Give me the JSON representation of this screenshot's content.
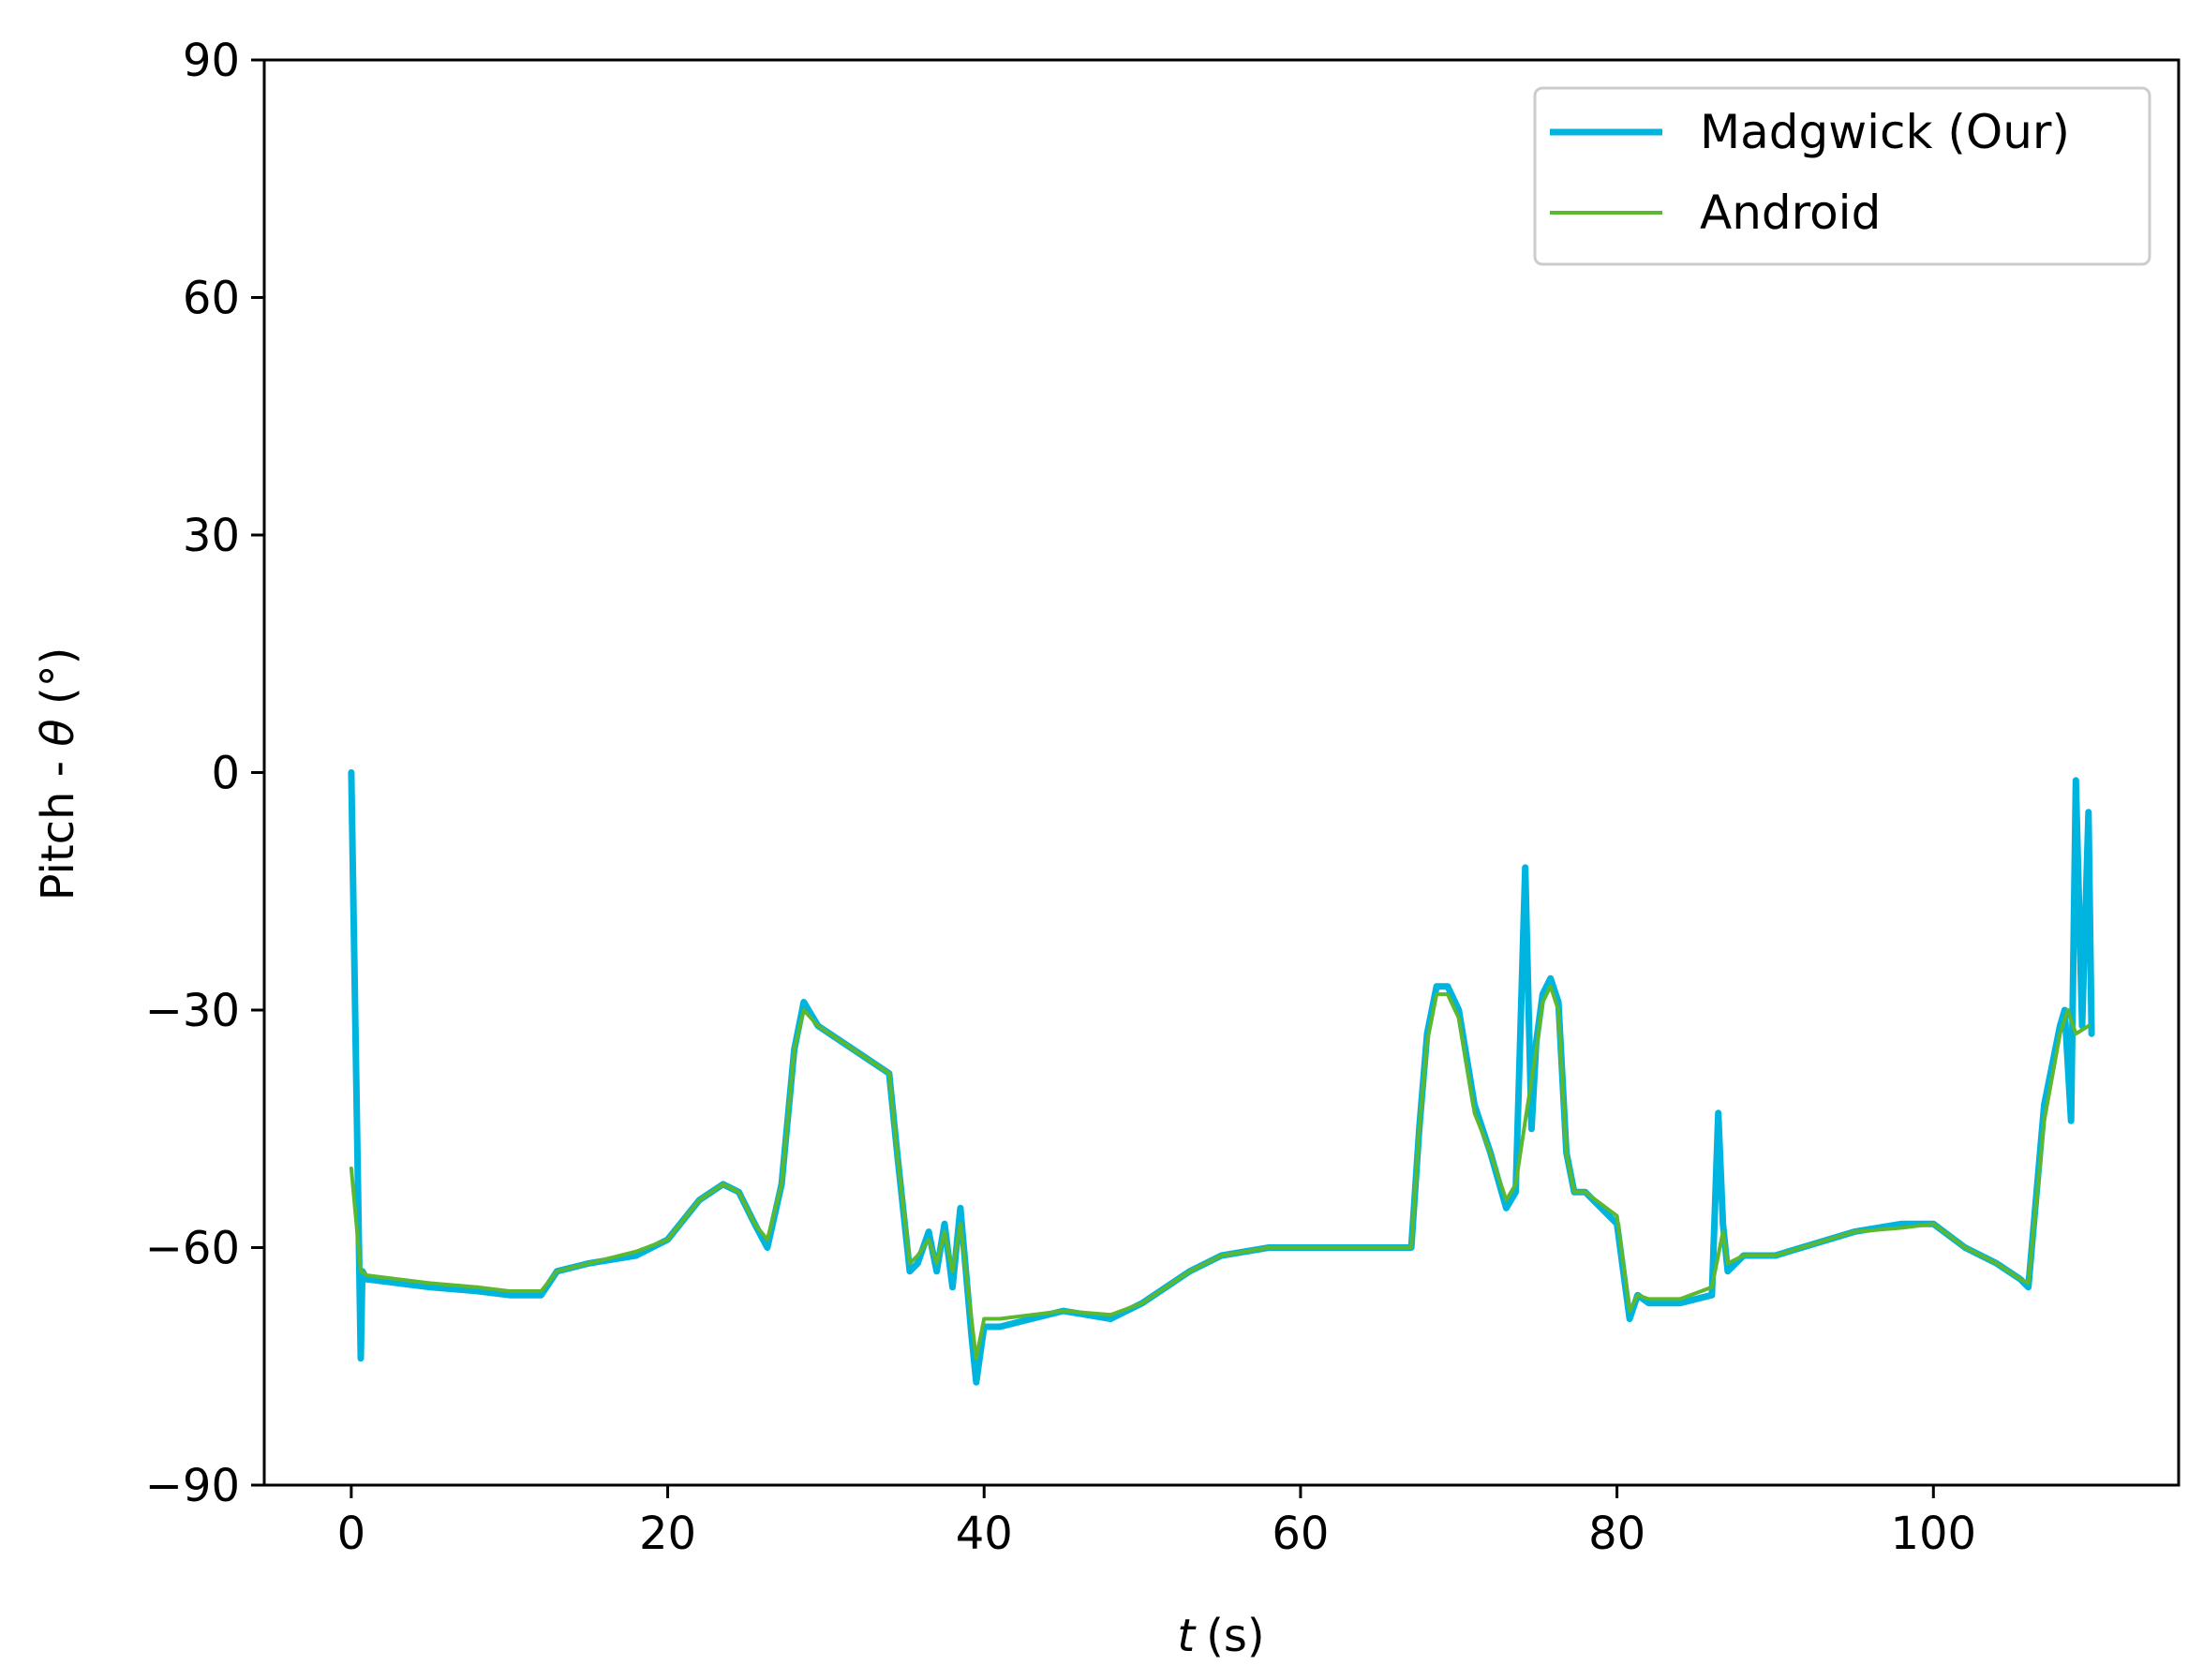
{
  "chart_data": {
    "type": "line",
    "title": "",
    "xlabel_var": "t",
    "xlabel_unit": "(s)",
    "ylabel_text": "Pitch - ",
    "ylabel_var": "θ",
    "ylabel_unit": " (°)",
    "xlim": [
      -5.5,
      115.5
    ],
    "ylim": [
      -90,
      90
    ],
    "xticks": [
      0,
      20,
      40,
      60,
      80,
      100
    ],
    "yticks": [
      90,
      60,
      30,
      0,
      -30,
      -60,
      -90
    ],
    "xtick_labels": [
      "0",
      "20",
      "40",
      "60",
      "80",
      "100"
    ],
    "ytick_labels": [
      "90",
      "60",
      "30",
      "0",
      "−30",
      "−60",
      "−90"
    ],
    "grid": false,
    "legend_position": "top-right",
    "series": [
      {
        "name": "Madgwick (Our)",
        "color": "#00b4e0",
        "x": [
          0,
          0.6,
          0.7,
          1,
          3,
          5,
          8,
          10,
          12,
          13,
          15,
          18,
          20,
          22,
          23.5,
          24.5,
          25.5,
          26.3,
          27.2,
          28,
          28.6,
          29.5,
          31,
          32.5,
          34,
          34.5,
          35.3,
          35.8,
          36.5,
          37,
          37.5,
          38,
          38.5,
          39.2,
          39.5,
          40,
          41,
          43,
          45,
          48,
          50,
          53,
          55,
          58,
          60,
          63,
          65,
          67,
          67.5,
          68,
          68.6,
          69.3,
          70,
          71,
          72,
          73,
          73.6,
          74.2,
          74.6,
          74.9,
          75.3,
          75.8,
          76.3,
          76.8,
          77.3,
          78,
          80,
          80.8,
          81.3,
          82,
          84,
          86,
          86.4,
          86.7,
          87,
          88,
          90,
          95,
          98,
          100,
          102,
          104,
          105.5,
          106,
          107,
          108,
          108.3,
          108.7,
          109,
          109.4,
          109.8,
          110
        ],
        "y": [
          0,
          -74,
          -63,
          -64,
          -64.5,
          -65,
          -65.5,
          -66,
          -66,
          -63,
          -62,
          -61,
          -59,
          -54,
          -52,
          -53,
          -57,
          -60,
          -52,
          -35,
          -29,
          -32,
          -34,
          -36,
          -38,
          -48,
          -63,
          -62,
          -58,
          -63,
          -57,
          -65,
          -55,
          -71,
          -77,
          -70,
          -70,
          -69,
          -68,
          -69,
          -67,
          -63,
          -61,
          -60,
          -60,
          -60,
          -60,
          -60,
          -45,
          -33,
          -27,
          -27,
          -30,
          -42,
          -48,
          -55,
          -53,
          -12,
          -45,
          -34,
          -28,
          -26,
          -29,
          -48,
          -53,
          -53,
          -57,
          -69,
          -66,
          -67,
          -67,
          -66,
          -43,
          -57,
          -63,
          -61,
          -61,
          -58,
          -57,
          -57,
          -60,
          -62,
          -64,
          -65,
          -42,
          -32,
          -30,
          -44,
          -1,
          -32,
          -5,
          -33
        ],
        "stroke_width": 7
      },
      {
        "name": "Android",
        "color": "#5cb82e",
        "x": [
          0,
          0.6,
          1,
          3,
          5,
          8,
          10,
          12,
          13,
          15,
          18,
          20,
          22,
          23.5,
          24.5,
          25.5,
          26.3,
          27.2,
          28,
          28.6,
          29.5,
          31,
          32.5,
          34,
          34.5,
          35.3,
          35.8,
          36.5,
          37,
          37.5,
          38,
          38.5,
          39.2,
          39.5,
          40,
          41,
          43,
          45,
          48,
          50,
          53,
          55,
          58,
          60,
          63,
          65,
          67,
          67.5,
          68,
          68.6,
          69.3,
          70,
          71,
          72,
          73,
          73.6,
          74.2,
          74.9,
          75.3,
          75.8,
          76.3,
          76.8,
          77.3,
          78,
          80,
          80.8,
          81.3,
          82,
          84,
          86,
          86.7,
          87,
          88,
          90,
          95,
          98,
          100,
          102,
          104,
          105.5,
          106,
          107,
          108,
          108.5,
          109,
          109.8
        ],
        "y": [
          -50,
          -63,
          -63.5,
          -64,
          -64.5,
          -65,
          -65.5,
          -65.5,
          -63,
          -62,
          -60.5,
          -59,
          -54,
          -52,
          -53,
          -57,
          -59,
          -52,
          -35,
          -30,
          -32,
          -34,
          -36,
          -38,
          -48,
          -62,
          -61,
          -59,
          -62,
          -58,
          -63,
          -57,
          -69,
          -74,
          -69,
          -69,
          -68.5,
          -68,
          -68.5,
          -67,
          -63,
          -61,
          -60,
          -60,
          -60,
          -60,
          -60,
          -45,
          -34,
          -28,
          -28,
          -31,
          -43,
          -48,
          -54,
          -52,
          -44,
          -35,
          -29,
          -27,
          -30,
          -48,
          -53,
          -53,
          -56,
          -68,
          -66,
          -66.5,
          -66.5,
          -65,
          -58,
          -62,
          -61,
          -61,
          -58,
          -57.5,
          -57,
          -60,
          -62,
          -64,
          -64.5,
          -44,
          -33,
          -30,
          -33,
          -32
        ],
        "stroke_width": 4
      }
    ]
  }
}
